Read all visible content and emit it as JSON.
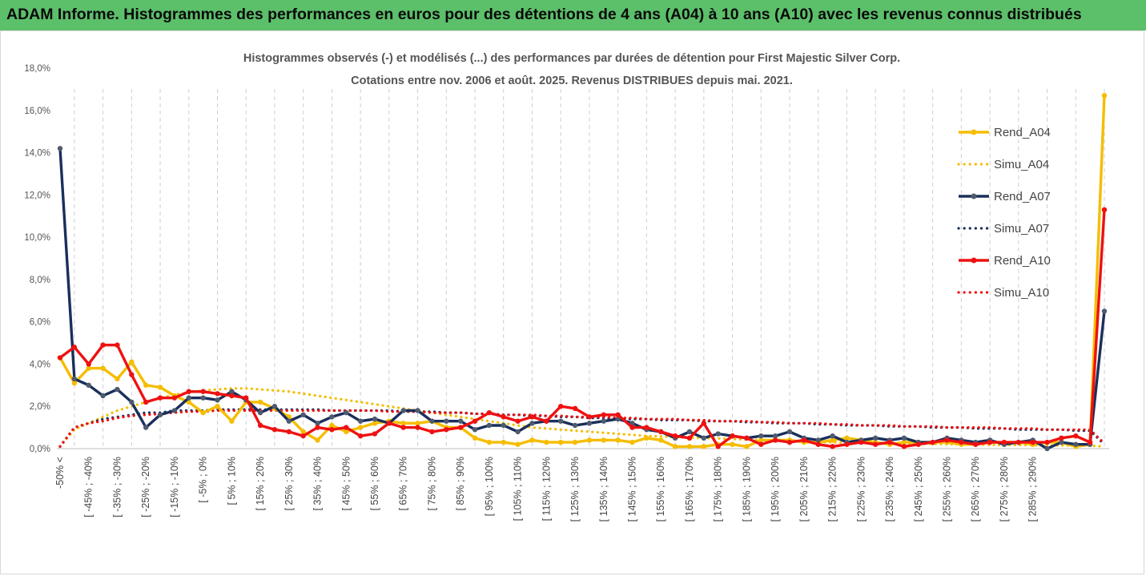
{
  "header": {
    "title": "ADAM Informe. Histogrammes des performances en euros pour des détentions de 4 ans (A04) à 10 ans (A10) avec les revenus connus distribués"
  },
  "chart_data": {
    "type": "line",
    "title": "Histogrammes observés (-) et modélisés (...) des performances par durées de détention pour First Majestic Silver Corp.",
    "subtitle": "Cotations entre nov. 2006 et août. 2025. Revenus DISTRIBUES depuis mai. 2021.",
    "xlabel": "",
    "ylabel": "",
    "ylim": [
      0,
      18
    ],
    "y_ticks": [
      "0,0%",
      "2,0%",
      "4,0%",
      "6,0%",
      "8,0%",
      "10,0%",
      "12,0%",
      "14,0%",
      "16,0%",
      "18,0%"
    ],
    "grid": "vertical dashed",
    "legend_position": "right",
    "x_tick_labels": [
      "-50% <",
      "[ -45% ; -40%",
      "[ -35% ; -30%",
      "[ -25% ; -20%",
      "[ -15% ; -10%",
      "[ -5% ; 0%",
      "[ 5% ; 10%",
      "[ 15% ; 20%",
      "[ 25% ; 30%",
      "[ 35% ; 40%",
      "[ 45% ; 50%",
      "[ 55% ; 60%",
      "[ 65% ; 70%",
      "[ 75% ; 80%",
      "[ 85% ; 90%",
      "[ 95% ; 100%",
      "[ 105% ; 110%",
      "[ 115% ; 120%",
      "[ 125% ; 130%",
      "[ 135% ; 140%",
      "[ 145% ; 150%",
      "[ 155% ; 160%",
      "[ 165% ; 170%",
      "[ 175% ; 180%",
      "[ 185% ; 190%",
      "[ 195% ; 200%",
      "[ 205% ; 210%",
      "[ 215% ; 220%",
      "[ 225% ; 230%",
      "[ 235% ; 240%",
      "[ 245% ; 250%",
      "[ 255% ; 260%",
      "[ 265% ; 270%",
      "[ 275% ; 280%",
      "[ 285% ; 290%"
    ],
    "series": [
      {
        "name": "Rend_A04",
        "style": "solid",
        "color": "#f5bd00",
        "values": [
          4.3,
          3.1,
          3.8,
          3.8,
          3.3,
          4.1,
          3.0,
          2.9,
          2.5,
          2.2,
          1.7,
          2.0,
          1.3,
          2.2,
          2.2,
          1.9,
          1.5,
          0.8,
          0.4,
          1.1,
          0.8,
          1.0,
          1.2,
          1.3,
          1.2,
          1.2,
          1.3,
          1.0,
          1.0,
          0.5,
          0.3,
          0.3,
          0.2,
          0.4,
          0.3,
          0.3,
          0.3,
          0.4,
          0.4,
          0.4,
          0.3,
          0.5,
          0.4,
          0.1,
          0.1,
          0.1,
          0.2,
          0.2,
          0.1,
          0.4,
          0.4,
          0.4,
          0.3,
          0.3,
          0.4,
          0.5,
          0.4,
          0.3,
          0.2,
          0.3,
          0.3,
          0.3,
          0.3,
          0.2,
          0.2,
          0.3,
          0.3,
          0.3,
          0.2,
          0.3,
          0.3,
          0.1,
          0.2,
          16.7
        ]
      },
      {
        "name": "Simu_A04",
        "style": "dotted",
        "color": "#f5bd00",
        "values": [
          0.1,
          0.9,
          1.2,
          1.5,
          1.8,
          2.0,
          2.2,
          2.4,
          2.55,
          2.65,
          2.75,
          2.8,
          2.85,
          2.85,
          2.8,
          2.75,
          2.7,
          2.6,
          2.5,
          2.4,
          2.3,
          2.2,
          2.1,
          2.0,
          1.9,
          1.8,
          1.7,
          1.6,
          1.5,
          1.4,
          1.3,
          1.2,
          1.1,
          1.0,
          0.95,
          0.9,
          0.85,
          0.8,
          0.75,
          0.7,
          0.65,
          0.6,
          0.58,
          0.55,
          0.52,
          0.5,
          0.48,
          0.45,
          0.43,
          0.4,
          0.38,
          0.36,
          0.34,
          0.32,
          0.3,
          0.28,
          0.27,
          0.26,
          0.25,
          0.24,
          0.23,
          0.22,
          0.21,
          0.2,
          0.19,
          0.18,
          0.17,
          0.17,
          0.16,
          0.15,
          0.15,
          0.14,
          0.14,
          0.1
        ]
      },
      {
        "name": "Rend_A07",
        "style": "solid",
        "color": "#1a2f5a",
        "values": [
          14.2,
          3.3,
          3.0,
          2.5,
          2.8,
          2.2,
          1.0,
          1.6,
          1.8,
          2.4,
          2.4,
          2.3,
          2.7,
          2.3,
          1.7,
          2.0,
          1.3,
          1.6,
          1.2,
          1.5,
          1.7,
          1.3,
          1.4,
          1.2,
          1.8,
          1.8,
          1.3,
          1.3,
          1.3,
          0.9,
          1.1,
          1.1,
          0.8,
          1.2,
          1.3,
          1.3,
          1.1,
          1.2,
          1.3,
          1.4,
          1.2,
          0.9,
          0.8,
          0.5,
          0.8,
          0.5,
          0.7,
          0.6,
          0.5,
          0.6,
          0.6,
          0.8,
          0.5,
          0.4,
          0.6,
          0.3,
          0.4,
          0.5,
          0.4,
          0.5,
          0.3,
          0.3,
          0.5,
          0.4,
          0.3,
          0.4,
          0.2,
          0.3,
          0.4,
          0.0,
          0.3,
          0.2,
          0.2,
          6.5
        ]
      },
      {
        "name": "Simu_A07",
        "style": "dotted",
        "color": "#1a2f5a",
        "values": [
          0.1,
          1.0,
          1.2,
          1.4,
          1.5,
          1.6,
          1.7,
          1.7,
          1.8,
          1.8,
          1.8,
          1.85,
          1.85,
          1.85,
          1.85,
          1.85,
          1.85,
          1.85,
          1.85,
          1.8,
          1.8,
          1.8,
          1.8,
          1.8,
          1.75,
          1.75,
          1.75,
          1.7,
          1.7,
          1.65,
          1.65,
          1.6,
          1.6,
          1.55,
          1.55,
          1.5,
          1.5,
          1.45,
          1.45,
          1.4,
          1.4,
          1.4,
          1.35,
          1.35,
          1.35,
          1.3,
          1.3,
          1.3,
          1.25,
          1.25,
          1.2,
          1.2,
          1.2,
          1.15,
          1.15,
          1.1,
          1.1,
          1.1,
          1.05,
          1.05,
          1.05,
          1.0,
          1.0,
          1.0,
          0.95,
          0.95,
          0.95,
          0.9,
          0.9,
          0.9,
          0.9,
          0.85,
          0.85,
          0.2
        ]
      },
      {
        "name": "Rend_A10",
        "style": "solid",
        "color": "#ee1111",
        "values": [
          4.3,
          4.8,
          4.0,
          4.9,
          4.9,
          3.5,
          2.2,
          2.4,
          2.4,
          2.7,
          2.7,
          2.6,
          2.5,
          2.4,
          1.1,
          0.9,
          0.8,
          0.6,
          1.0,
          0.9,
          1.0,
          0.6,
          0.7,
          1.2,
          1.0,
          1.0,
          0.8,
          0.9,
          1.0,
          1.3,
          1.7,
          1.5,
          1.3,
          1.5,
          1.3,
          2.0,
          1.9,
          1.5,
          1.6,
          1.6,
          1.0,
          1.0,
          0.8,
          0.6,
          0.5,
          1.2,
          0.1,
          0.6,
          0.5,
          0.2,
          0.4,
          0.3,
          0.4,
          0.2,
          0.1,
          0.2,
          0.3,
          0.2,
          0.3,
          0.1,
          0.2,
          0.3,
          0.4,
          0.3,
          0.2,
          0.3,
          0.3,
          0.3,
          0.3,
          0.3,
          0.5,
          0.6,
          0.3,
          11.3
        ]
      },
      {
        "name": "Simu_A10",
        "style": "dotted",
        "color": "#ee1111",
        "values": [
          0.1,
          1.0,
          1.2,
          1.3,
          1.45,
          1.55,
          1.6,
          1.65,
          1.7,
          1.75,
          1.75,
          1.8,
          1.8,
          1.8,
          1.8,
          1.8,
          1.8,
          1.8,
          1.8,
          1.8,
          1.8,
          1.8,
          1.8,
          1.75,
          1.75,
          1.75,
          1.7,
          1.7,
          1.7,
          1.65,
          1.65,
          1.6,
          1.6,
          1.6,
          1.55,
          1.55,
          1.5,
          1.5,
          1.5,
          1.45,
          1.45,
          1.4,
          1.4,
          1.4,
          1.35,
          1.35,
          1.3,
          1.3,
          1.3,
          1.25,
          1.25,
          1.2,
          1.2,
          1.2,
          1.15,
          1.15,
          1.1,
          1.1,
          1.1,
          1.05,
          1.05,
          1.05,
          1.0,
          1.0,
          1.0,
          1.0,
          0.95,
          0.95,
          0.95,
          0.9,
          0.9,
          0.9,
          0.9,
          0.25
        ]
      }
    ]
  }
}
